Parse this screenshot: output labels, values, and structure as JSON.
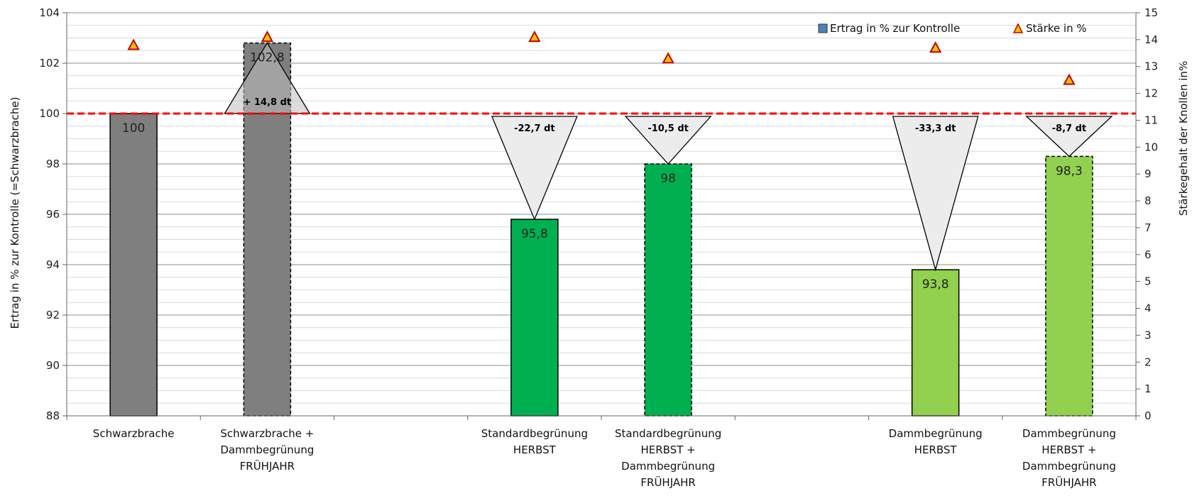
{
  "chart_data": {
    "type": "bar",
    "categories": [
      "Schwarzbrache",
      "Schwarzbrache + Dammbegrünung FRÜHJAHR",
      "",
      "Standardbegrünung HERBST",
      "Standardbegrünung HERBST + Dammbegrünung FRÜHJAHR",
      "",
      "Dammbegrünung HERBST",
      "Dammbegrünung HERBST + Dammbegrünung FRÜHJAHR"
    ],
    "category_lines": [
      [
        "Schwarzbrache"
      ],
      [
        "Schwarzbrache +",
        "Dammbegrünung",
        "FRÜHJAHR"
      ],
      [],
      [
        "Standardbegrünung",
        "HERBST"
      ],
      [
        "Standardbegrünung",
        "HERBST +",
        "Dammbegrünung",
        "FRÜHJAHR"
      ],
      [],
      [
        "Dammbegrünung",
        "HERBST"
      ],
      [
        "Dammbegrünung",
        "HERBST +",
        "Dammbegrünung",
        "FRÜHJAHR"
      ]
    ],
    "series": [
      {
        "name": "Ertrag in % zur Kontrolle",
        "axis": "left",
        "kind": "bar",
        "values": [
          100,
          102.8,
          null,
          95.8,
          98,
          null,
          93.8,
          98.3
        ],
        "value_labels": [
          "100",
          "102,8",
          "",
          "95,8",
          "98",
          "",
          "93,8",
          "98,3"
        ],
        "colors": [
          "#7f7f7f",
          "#7f7f7f",
          null,
          "#00b050",
          "#00b050",
          null,
          "#92d050",
          "#92d050"
        ],
        "dashed": [
          false,
          true,
          false,
          false,
          true,
          false,
          false,
          true
        ]
      },
      {
        "name": "Stärke in %",
        "axis": "right",
        "kind": "marker",
        "values": [
          13.8,
          14.1,
          null,
          14.1,
          13.3,
          null,
          13.7,
          12.5
        ],
        "color": "#c00000",
        "fill": "#ffc000"
      }
    ],
    "differences": [
      {
        "index": 1,
        "label": "+ 14,8 dt",
        "direction": "up"
      },
      {
        "index": 3,
        "label": "-22,7 dt",
        "direction": "down"
      },
      {
        "index": 4,
        "label": "-10,5 dt",
        "direction": "down"
      },
      {
        "index": 6,
        "label": "-33,3 dt",
        "direction": "down"
      },
      {
        "index": 7,
        "label": "-8,7 dt",
        "direction": "down"
      }
    ],
    "reference_line": {
      "value": 100,
      "axis": "left",
      "color": "#ff0000",
      "style": "dashed"
    },
    "ylabel": "Ertrag in % zur Kontrolle (=Schwarzbrache)",
    "ylabel_right": "Stärkegehalt der Knollen in%",
    "xlabel": "",
    "ylim": [
      88,
      104
    ],
    "yticks": [
      88,
      90,
      92,
      94,
      96,
      98,
      100,
      102,
      104
    ],
    "ylim_right": [
      0,
      15
    ],
    "yticks_right": [
      0,
      1,
      2,
      3,
      4,
      5,
      6,
      7,
      8,
      9,
      10,
      11,
      12,
      13,
      14,
      15
    ],
    "grid": true,
    "legend_position": "top-right",
    "legend": [
      {
        "label": "Ertrag in % zur Kontrolle",
        "swatch": "#4f81bd"
      },
      {
        "label": "Stärke in %",
        "marker": "triangle"
      }
    ]
  }
}
